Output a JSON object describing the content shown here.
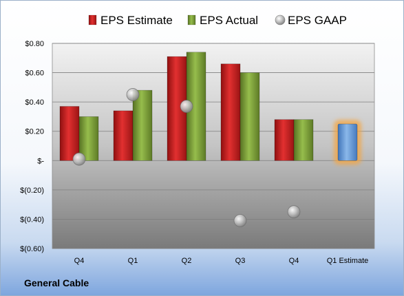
{
  "company_name": "General Cable",
  "chart_data": {
    "type": "bar",
    "categories": [
      "Q4",
      "Q1",
      "Q2",
      "Q3",
      "Q4",
      "Q1 Estimate"
    ],
    "series": [
      {
        "name": "EPS Estimate",
        "type": "bar",
        "color": "#cc1f1f",
        "values": [
          0.37,
          0.34,
          0.71,
          0.66,
          0.28,
          null
        ]
      },
      {
        "name": "EPS Actual",
        "type": "bar",
        "color": "#7fa33a",
        "values": [
          0.3,
          0.48,
          0.74,
          0.6,
          0.28,
          null
        ]
      },
      {
        "name": "EPS GAAP",
        "type": "scatter",
        "color": "#a6a6a6",
        "values": [
          0.01,
          0.45,
          0.37,
          -0.41,
          -0.35,
          null
        ]
      },
      {
        "name": "Q1 Estimate",
        "type": "bar",
        "color": "#6a9fd8",
        "highlight": "#f5a541",
        "values": [
          null,
          null,
          null,
          null,
          null,
          0.25
        ]
      }
    ],
    "yticks": [
      0.8,
      0.6,
      0.4,
      0.2,
      0,
      -0.2,
      -0.4,
      -0.6
    ],
    "ytick_labels": [
      "$0.80",
      "$0.60",
      "$0.40",
      "$0.20",
      "$-",
      "$(0.20)",
      "$(0.40)",
      "$(0.60)"
    ],
    "ylim": [
      -0.6,
      0.8
    ],
    "grid": true,
    "legend_position": "top"
  }
}
